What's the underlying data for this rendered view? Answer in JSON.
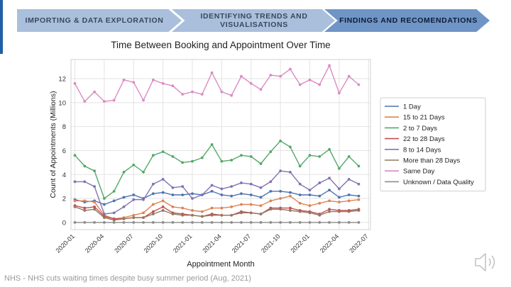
{
  "steps": [
    "IMPORTING & DATA EXPLORATION",
    "IDENTIFYING TRENDS AND VISUALISATIONS",
    "FINDINGS AND RECOMENDATIONS"
  ],
  "source": "NHS - NHS cuts waiting times despite busy summer period (Aug, 2021)",
  "chart_data": {
    "type": "line",
    "title": "Time Between Booking and Appointment Over Time",
    "xlabel": "Appointment Month",
    "ylabel": "Count of Appointments (Millions)",
    "ylim": [
      -0.6,
      13.6
    ],
    "yticks": [
      0,
      2,
      4,
      6,
      8,
      10,
      12
    ],
    "xticks": [
      "2020-01",
      "2020-04",
      "2020-07",
      "2020-10",
      "2021-01",
      "2021-04",
      "2021-07",
      "2021-10",
      "2022-01",
      "2022-04",
      "2022-07"
    ],
    "x": [
      "2020-01",
      "2020-02",
      "2020-03",
      "2020-04",
      "2020-05",
      "2020-06",
      "2020-07",
      "2020-08",
      "2020-09",
      "2020-10",
      "2020-11",
      "2020-12",
      "2021-01",
      "2021-02",
      "2021-03",
      "2021-04",
      "2021-05",
      "2021-06",
      "2021-07",
      "2021-08",
      "2021-09",
      "2021-10",
      "2021-11",
      "2021-12",
      "2022-01",
      "2022-02",
      "2022-03",
      "2022-04",
      "2022-05",
      "2022-06"
    ],
    "grid": true,
    "legend_position": "right",
    "series": [
      {
        "name": "1 Day",
        "color": "#4c72b0",
        "values": [
          1.9,
          1.7,
          1.8,
          1.5,
          1.8,
          2.1,
          2.3,
          2.0,
          2.4,
          2.5,
          2.3,
          2.3,
          2.4,
          2.3,
          2.6,
          2.3,
          2.2,
          2.4,
          2.3,
          2.1,
          2.6,
          2.6,
          2.5,
          2.3,
          2.3,
          2.2,
          2.7,
          2.1,
          2.3,
          2.2
        ]
      },
      {
        "name": "15  to 21 Days",
        "color": "#dd8452",
        "values": [
          1.8,
          1.8,
          1.7,
          0.6,
          0.3,
          0.4,
          0.6,
          0.8,
          1.5,
          1.8,
          1.3,
          1.2,
          1.0,
          0.9,
          1.2,
          1.2,
          1.3,
          1.5,
          1.5,
          1.4,
          1.8,
          2.0,
          2.2,
          1.6,
          1.4,
          1.6,
          1.8,
          1.7,
          1.8,
          1.9
        ]
      },
      {
        "name": "2 to 7 Days",
        "color": "#55a868",
        "values": [
          5.6,
          4.7,
          4.3,
          2.0,
          2.6,
          4.2,
          4.8,
          4.2,
          5.6,
          5.9,
          5.5,
          5.0,
          5.1,
          5.4,
          6.5,
          5.1,
          5.2,
          5.6,
          5.5,
          4.9,
          5.9,
          6.8,
          6.3,
          4.7,
          5.6,
          5.5,
          6.1,
          4.5,
          5.5,
          4.7
        ]
      },
      {
        "name": "22  to 28 Days",
        "color": "#c44e52",
        "values": [
          1.4,
          1.2,
          1.3,
          0.5,
          0.3,
          0.3,
          0.4,
          0.4,
          0.9,
          1.3,
          0.8,
          0.7,
          0.6,
          0.5,
          0.7,
          0.6,
          0.6,
          0.9,
          0.8,
          0.7,
          1.2,
          1.2,
          1.2,
          1.0,
          0.9,
          0.7,
          1.1,
          1.0,
          1.0,
          1.1
        ]
      },
      {
        "name": "8  to 14 Days",
        "color": "#8172b3",
        "values": [
          3.4,
          3.4,
          3.0,
          0.7,
          0.8,
          1.3,
          1.9,
          1.9,
          3.2,
          3.6,
          2.9,
          3.0,
          2.0,
          2.3,
          3.1,
          2.8,
          3.0,
          3.3,
          3.2,
          2.9,
          3.4,
          4.3,
          4.2,
          3.2,
          2.7,
          3.3,
          3.7,
          2.8,
          3.6,
          3.2
        ]
      },
      {
        "name": "More than 28 Days",
        "color": "#937860",
        "values": [
          1.3,
          1.0,
          1.1,
          0.4,
          0.2,
          0.3,
          0.4,
          0.4,
          0.7,
          1.0,
          0.7,
          0.6,
          0.6,
          0.5,
          0.6,
          0.6,
          0.6,
          0.8,
          0.8,
          0.7,
          1.1,
          1.1,
          1.0,
          0.9,
          0.8,
          0.6,
          0.9,
          0.9,
          0.9,
          1.0
        ]
      },
      {
        "name": "Same Day",
        "color": "#da8bc3",
        "values": [
          11.6,
          10.1,
          10.9,
          10.1,
          10.2,
          11.9,
          11.7,
          10.2,
          11.9,
          11.6,
          11.4,
          10.7,
          10.9,
          10.7,
          12.5,
          10.9,
          10.6,
          12.2,
          11.6,
          11.1,
          12.3,
          12.2,
          12.8,
          11.5,
          11.9,
          11.5,
          13.1,
          10.8,
          12.2,
          11.5
        ]
      },
      {
        "name": "Unknown / Data Quality",
        "color": "#8c8c8c",
        "values": [
          0,
          0,
          0,
          0,
          0,
          0,
          0,
          0,
          0,
          0,
          0,
          0,
          0,
          0,
          0,
          0,
          0,
          0,
          0,
          0,
          0,
          0,
          0,
          0,
          0,
          0,
          0,
          0,
          0,
          0
        ]
      }
    ]
  }
}
